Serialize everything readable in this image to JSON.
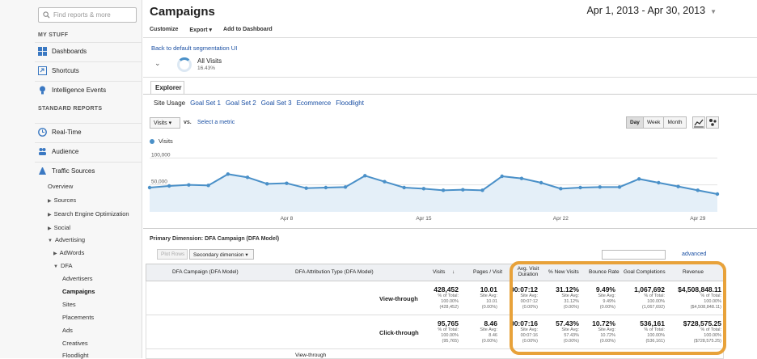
{
  "sidebar": {
    "search_placeholder": "Find reports & more",
    "my_stuff_heading": "MY STUFF",
    "my_stuff": [
      {
        "label": "Dashboards",
        "icon": "dashboard-icon"
      },
      {
        "label": "Shortcuts",
        "icon": "shortcuts-icon"
      },
      {
        "label": "Intelligence Events",
        "icon": "lightbulb-icon"
      }
    ],
    "standard_heading": "STANDARD REPORTS",
    "reports": [
      {
        "label": "Real-Time",
        "icon": "clock-icon"
      },
      {
        "label": "Audience",
        "icon": "people-icon"
      },
      {
        "label": "Traffic Sources",
        "icon": "traffic-icon"
      }
    ],
    "traffic_sub": {
      "overview": "Overview",
      "sources": "Sources",
      "seo": "Search Engine Optimization",
      "social": "Social",
      "advertising": "Advertising",
      "adwords": "AdWords",
      "dfa": "DFA",
      "dfa_children": [
        "Advertisers",
        "Campaigns",
        "Sites",
        "Placements",
        "Ads",
        "Creatives",
        "Floodlight"
      ]
    }
  },
  "header": {
    "title": "Campaigns",
    "date_range": "Apr 1, 2013 - Apr 30, 2013",
    "toolbar": {
      "customize": "Customize",
      "export": "Export",
      "add_dashboard": "Add to Dashboard"
    },
    "back_link": "Back to default segmentation UI",
    "segment": {
      "name": "All Visits",
      "pct": "16.43%"
    }
  },
  "explorer": {
    "tab": "Explorer",
    "subtabs": [
      "Site Usage",
      "Goal Set 1",
      "Goal Set 2",
      "Goal Set 3",
      "Ecommerce",
      "Floodlight"
    ],
    "metric": "Visits",
    "vs": "vs.",
    "select_metric": "Select a metric",
    "periods": [
      "Day",
      "Week",
      "Month"
    ],
    "active_period": "Day"
  },
  "chart_data": {
    "type": "area",
    "legend": "Visits",
    "y_ticks": [
      "100,000",
      "50,000"
    ],
    "ylim": [
      0,
      120000
    ],
    "x_labels": [
      "Apr 8",
      "Apr 15",
      "Apr 22",
      "Apr 29"
    ],
    "x": [
      1,
      2,
      3,
      4,
      5,
      6,
      7,
      8,
      9,
      10,
      11,
      12,
      13,
      14,
      15,
      16,
      17,
      18,
      19,
      20,
      21,
      22,
      23,
      24,
      25,
      26,
      27,
      28,
      29,
      30
    ],
    "values": [
      45000,
      48000,
      50000,
      49000,
      70000,
      64000,
      52000,
      53000,
      44000,
      45000,
      46000,
      67000,
      56000,
      45000,
      43000,
      40000,
      41000,
      40000,
      66000,
      62000,
      54000,
      43000,
      45000,
      46000,
      46000,
      61000,
      54000,
      47000,
      40000,
      33000
    ]
  },
  "table": {
    "primary_dimension_label": "Primary Dimension:",
    "primary_dimension": "DFA Campaign (DFA Model)",
    "plot_rows": "Plot Rows",
    "secondary_dimension": "Secondary dimension",
    "advanced": "advanced",
    "headers": [
      "DFA Campaign (DFA Model)",
      "DFA Attribution Type (DFA Model)",
      "Visits",
      "Pages / Visit",
      "Avg. Visit Duration",
      "% New Visits",
      "Bounce Rate",
      "Goal Completions",
      "Revenue"
    ],
    "rows": [
      {
        "type": "View-through",
        "visits": {
          "v": "428,452",
          "s1": "% of Total:",
          "s2": "100.00%",
          "s3": "(428,452)"
        },
        "ppv": {
          "v": "10.01",
          "s1": "Site Avg:",
          "s2": "10.01",
          "s3": "(0.00%)"
        },
        "dur": {
          "v": "00:07:12",
          "s1": "Site Avg:",
          "s2": "00:07:12",
          "s3": "(0.00%)"
        },
        "newv": {
          "v": "31.12%",
          "s1": "Site Avg:",
          "s2": "31.12%",
          "s3": "(0.00%)"
        },
        "bounce": {
          "v": "9.49%",
          "s1": "Site Avg:",
          "s2": "9.49%",
          "s3": "(0.00%)"
        },
        "goals": {
          "v": "1,067,692",
          "s1": "% of Total:",
          "s2": "100.00%",
          "s3": "(1,067,692)"
        },
        "rev": {
          "v": "$4,508,848.11",
          "s1": "% of Total:",
          "s2": "100.00%",
          "s3": "($4,508,848.11)"
        }
      },
      {
        "type": "Click-through",
        "visits": {
          "v": "95,765",
          "s1": "% of Total:",
          "s2": "100.00%",
          "s3": "(95,765)"
        },
        "ppv": {
          "v": "8.46",
          "s1": "Site Avg:",
          "s2": "8.46",
          "s3": "(0.00%)"
        },
        "dur": {
          "v": "00:07:16",
          "s1": "Site Avg:",
          "s2": "00:07:16",
          "s3": "(0.00%)"
        },
        "newv": {
          "v": "57.43%",
          "s1": "Site Avg:",
          "s2": "57.43%",
          "s3": "(0.00%)"
        },
        "bounce": {
          "v": "10.72%",
          "s1": "Site Avg:",
          "s2": "10.72%",
          "s3": "(0.00%)"
        },
        "goals": {
          "v": "536,161",
          "s1": "% of Total:",
          "s2": "100.00%",
          "s3": "(536,161)"
        },
        "rev": {
          "v": "$728,575.25",
          "s1": "% of Total:",
          "s2": "100.00%",
          "s3": "($728,575.25)"
        }
      }
    ],
    "partial_row": {
      "type": "View-through"
    }
  }
}
